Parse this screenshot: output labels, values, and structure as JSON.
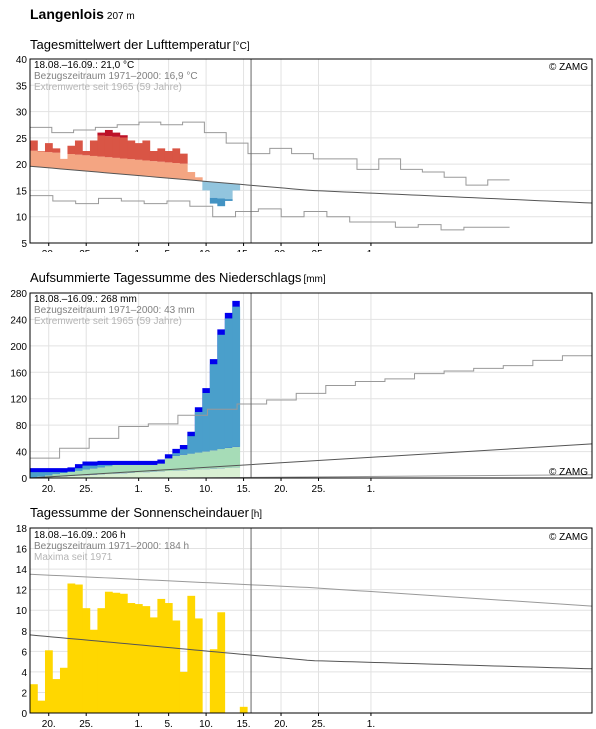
{
  "station": {
    "name": "Langenlois",
    "elevation": "207 m"
  },
  "brand": "© ZAMG",
  "x_tick_labels": [
    "20.",
    "25.",
    "1.",
    "5.",
    "10.",
    "15.",
    "20.",
    "25.",
    "1."
  ],
  "colors": {
    "temp_above_strong": "#bd1128",
    "temp_above_mid": "#d95545",
    "temp_above_light": "#f4a582",
    "temp_below_light": "#92c5de",
    "temp_below_mid": "#4393c3",
    "temp_below_strong": "#2166ac",
    "precip_actual": "#0000ee",
    "precip_fill_dark": "#4a9fcb",
    "precip_fill_mid": "#a6dcb7",
    "precip_fill_light": "#d9f0d3",
    "sun": "#ffd700",
    "grid": "#e2e2e2",
    "ref": "#555555",
    "extreme": "#999999",
    "today_line": "#666666"
  },
  "chart_data": [
    {
      "type": "bar",
      "title": "Tagesmittelwert der Lufttemperatur",
      "unit": "[°C]",
      "ylim": [
        5,
        40
      ],
      "yticks": [
        5,
        10,
        15,
        20,
        25,
        30,
        35,
        40
      ],
      "x_days": 75,
      "today_index": 29,
      "annotations": [
        "18.08.–16.09.: 21,0 °C",
        "Bezugszeitraum 1971–2000: 16,9 °C",
        "Extremwerte seit 1965 (59 Jahre)"
      ],
      "values": [
        24.5,
        22.5,
        24,
        23,
        21,
        23.5,
        24.5,
        22.5,
        24.5,
        26,
        26.5,
        26,
        25.5,
        24.5,
        24,
        24.5,
        22.5,
        23,
        22.5,
        23,
        22,
        18.5,
        17.5,
        15,
        12.5,
        12,
        13,
        15
      ],
      "reference": [
        19.6,
        15.0,
        12.6
      ],
      "extreme_max": [
        27,
        26,
        26.5,
        27,
        27.5,
        28,
        27.5,
        28,
        26,
        24,
        22,
        23,
        22,
        21,
        21,
        19,
        21,
        19,
        18.5,
        17.5,
        16,
        17
      ],
      "extreme_min": [
        14,
        13,
        12.5,
        13.5,
        13,
        12.5,
        13,
        12,
        10,
        11,
        11.5,
        10,
        11,
        10,
        9,
        9,
        8,
        8.5,
        7.5,
        8,
        8
      ]
    },
    {
      "type": "area",
      "title": "Aufsummierte Tagessumme des Niederschlags",
      "unit": "[mm]",
      "ylim": [
        0,
        280
      ],
      "yticks": [
        0,
        40,
        80,
        120,
        160,
        200,
        240,
        280
      ],
      "x_days": 75,
      "today_index": 29,
      "annotations": [
        "18.08.–16.09.: 268 mm",
        "Bezugszeitraum 1971–2000: 43 mm",
        "Extremwerte seit 1965 (59 Jahre)"
      ],
      "cumulative": [
        15,
        15,
        15,
        15,
        15,
        16,
        21,
        25,
        25,
        26,
        26,
        26,
        26,
        26,
        26,
        26,
        26,
        28,
        36,
        44,
        50,
        70,
        107,
        136,
        180,
        225,
        250,
        268
      ],
      "extreme_max": [
        30,
        45,
        60,
        78,
        82,
        95,
        104,
        112,
        118,
        128,
        140,
        146,
        150,
        158,
        162,
        166,
        170,
        178,
        185
      ],
      "reference_end": 43,
      "reference_end_of_range": 75
    },
    {
      "type": "bar",
      "title": "Tagessumme der Sonnenscheindauer",
      "unit": "[h]",
      "ylim": [
        0,
        18
      ],
      "yticks": [
        0,
        2,
        4,
        6,
        8,
        10,
        12,
        14,
        16,
        18
      ],
      "x_days": 75,
      "today_index": 29,
      "annotations": [
        "18.08.–16.09.: 206 h",
        "Bezugszeitraum 1971–2000: 184 h",
        "Maxima seit 1971"
      ],
      "values": [
        2.8,
        1.2,
        6.1,
        3.3,
        4.4,
        12.6,
        12.5,
        10.2,
        8.1,
        10.2,
        11.8,
        11.7,
        11.6,
        10.7,
        10.6,
        10.4,
        9.3,
        11.1,
        10.7,
        9.0,
        4.0,
        11.4,
        9.2,
        0,
        6.2,
        9.8,
        0,
        0,
        0.6
      ],
      "maxima": [
        13.5,
        12.2,
        10.4
      ],
      "reference": [
        7.6,
        5.1,
        4.3
      ]
    }
  ]
}
